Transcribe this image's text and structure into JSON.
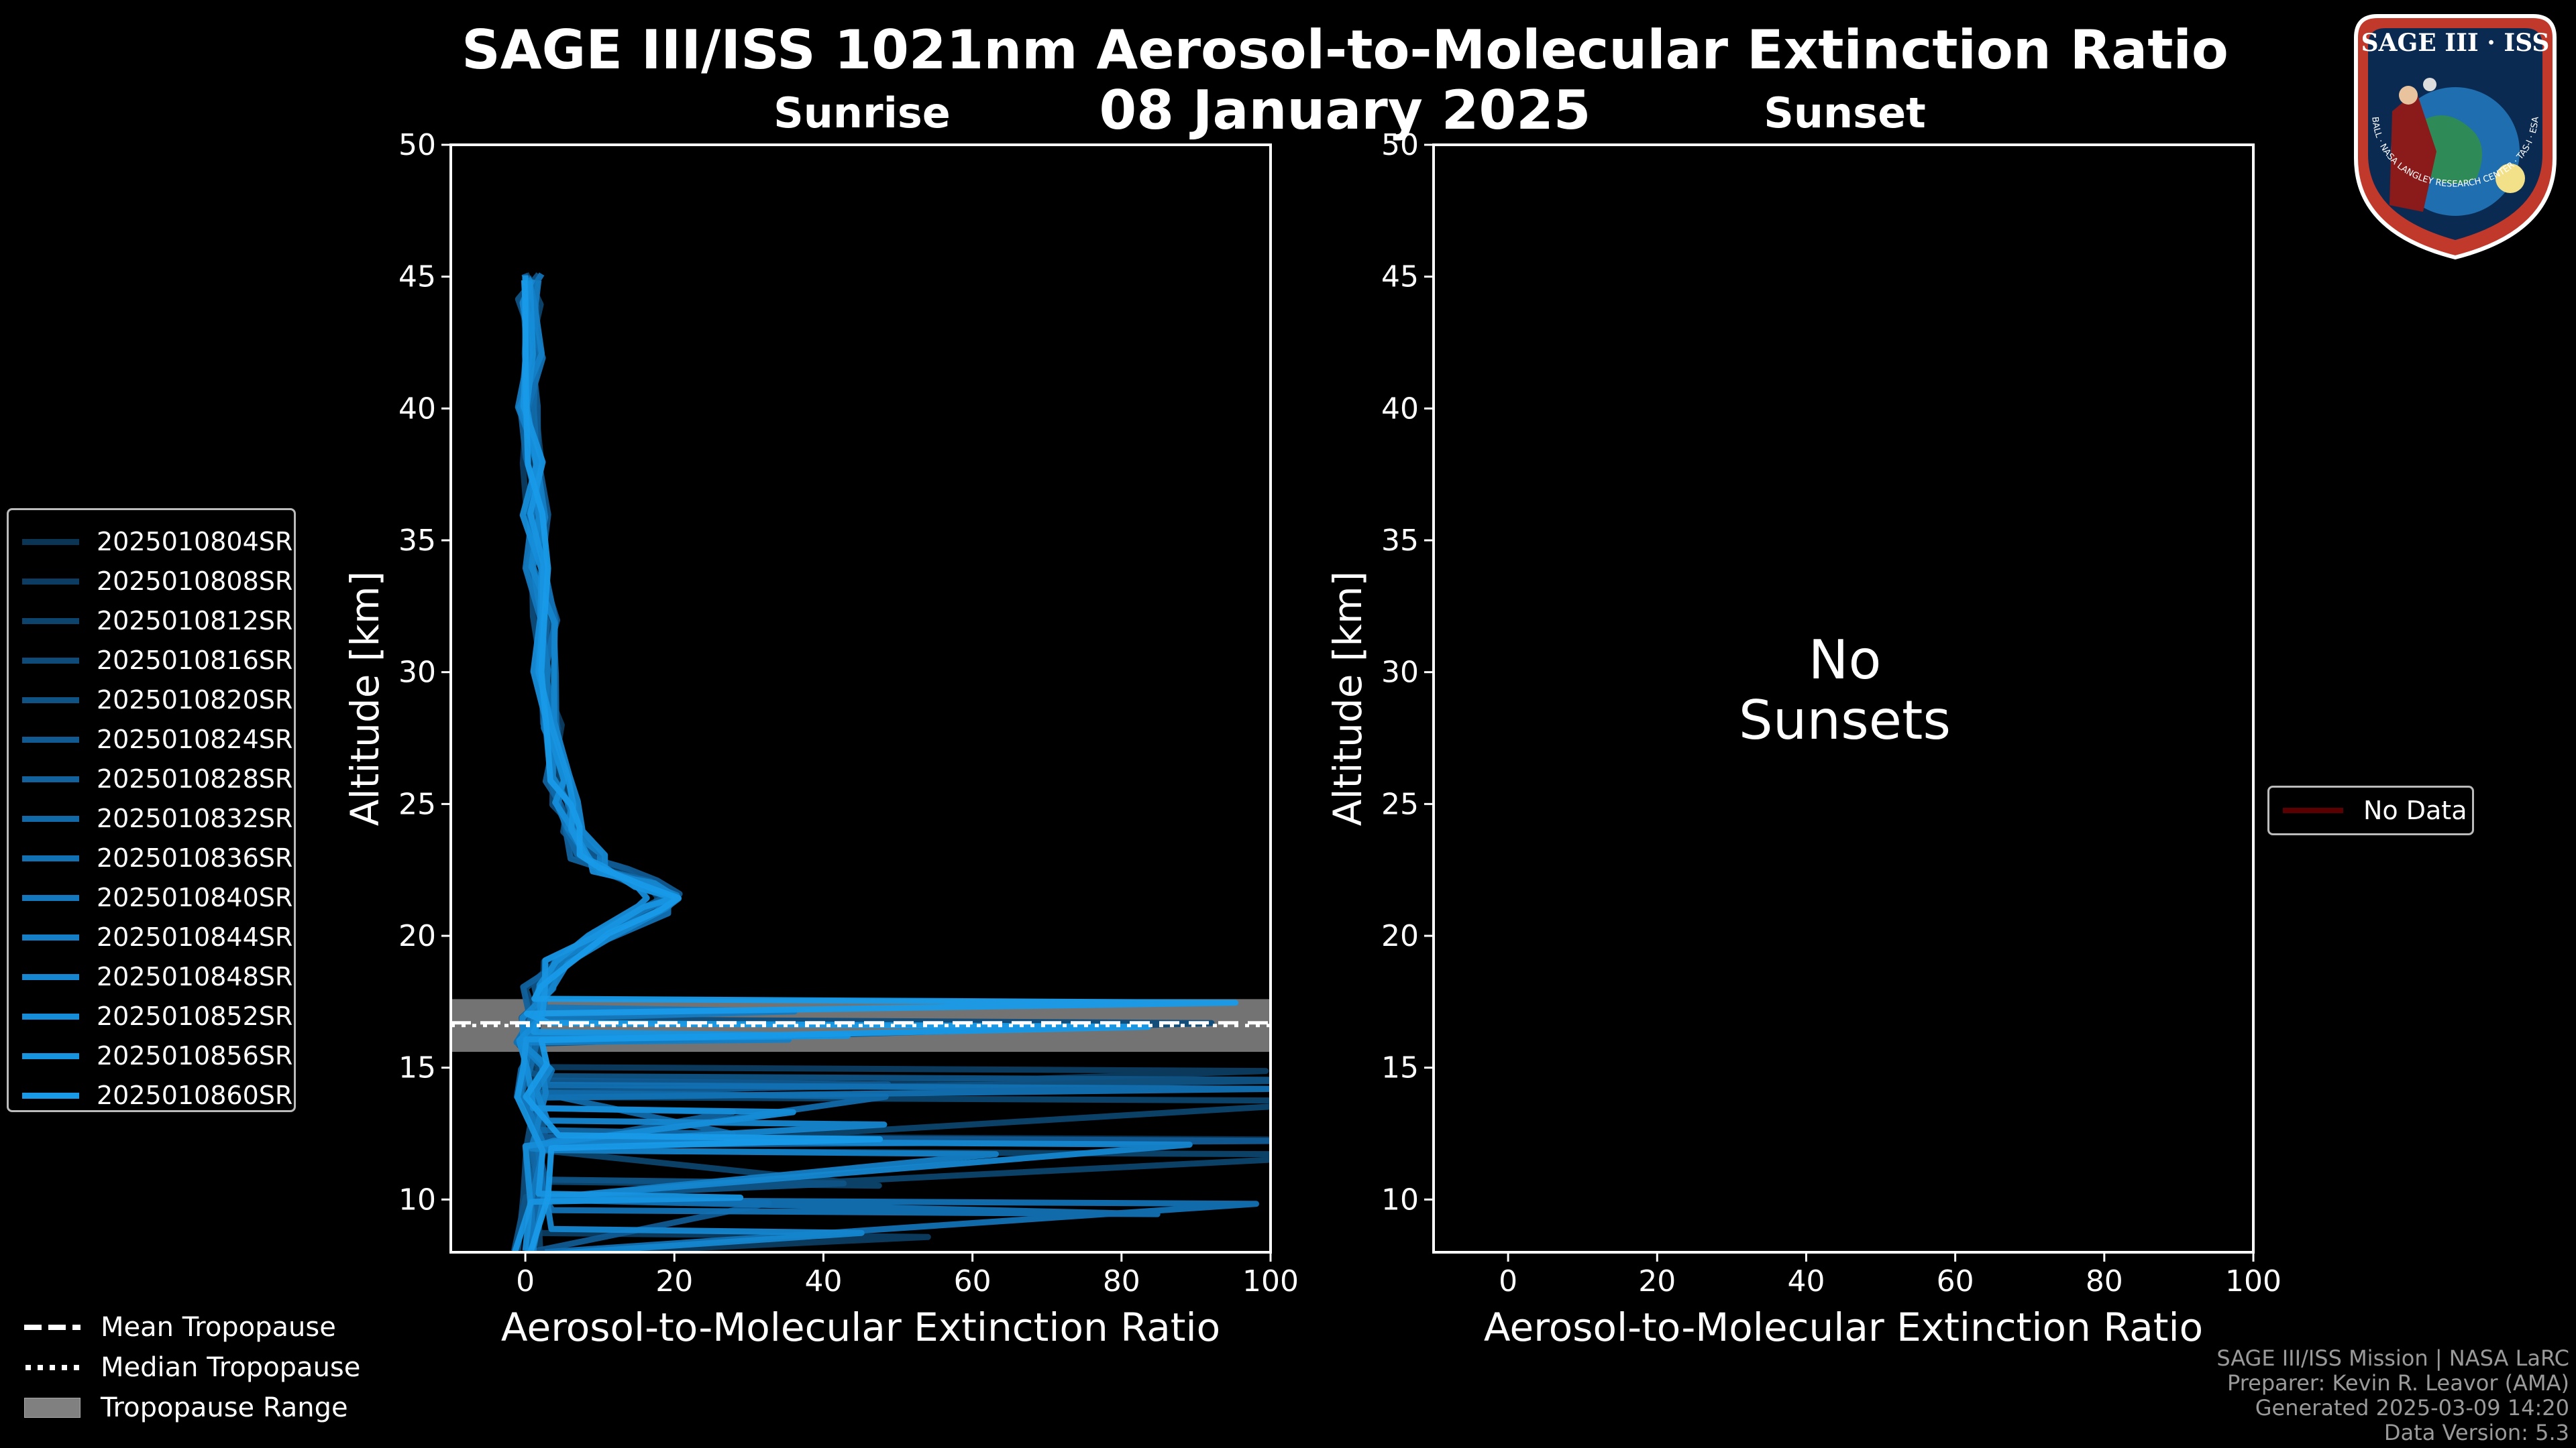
{
  "title_line1": "SAGE III/ISS 1021nm Aerosol-to-Molecular Extinction Ratio",
  "title_line2": "08 January 2025",
  "badge": {
    "text_top": "SAGE III · ISS",
    "text_ring": "BALL · NASA LANGLEY RESEARCH CENTER · TAS-I · ESA"
  },
  "chart_data": [
    {
      "type": "line",
      "subtitle": "Sunrise",
      "xlabel": "Aerosol-to-Molecular Extinction Ratio",
      "ylabel": "Altitude [km]",
      "xlim": [
        -10,
        100
      ],
      "ylim": [
        8,
        50
      ],
      "xticks": [
        "0",
        "20",
        "40",
        "60",
        "80",
        "100"
      ],
      "yticks": [
        "10",
        "15",
        "20",
        "25",
        "30",
        "35",
        "40",
        "45",
        "50"
      ],
      "tropopause": {
        "mean_km": 16.7,
        "median_km": 16.6,
        "range_km": [
          15.6,
          17.6
        ]
      },
      "series": [
        {
          "name": "2025010804SR",
          "color": "#0b3555"
        },
        {
          "name": "2025010808SR",
          "color": "#0c3c61"
        },
        {
          "name": "2025010812SR",
          "color": "#0d446d"
        },
        {
          "name": "2025010816SR",
          "color": "#0e4b79"
        },
        {
          "name": "2025010820SR",
          "color": "#0f5385"
        },
        {
          "name": "2025010824SR",
          "color": "#105a91"
        },
        {
          "name": "2025010828SR",
          "color": "#11629d"
        },
        {
          "name": "2025010832SR",
          "color": "#1169a8"
        },
        {
          "name": "2025010836SR",
          "color": "#1271b3"
        },
        {
          "name": "2025010840SR",
          "color": "#1378bd"
        },
        {
          "name": "2025010844SR",
          "color": "#147fc6"
        },
        {
          "name": "2025010848SR",
          "color": "#1586cf"
        },
        {
          "name": "2025010852SR",
          "color": "#168dd8"
        },
        {
          "name": "2025010856SR",
          "color": "#1794e0"
        },
        {
          "name": "2025010860SR",
          "color": "#189ae8"
        }
      ],
      "profile_core": {
        "alt_km": [
          8,
          10,
          12,
          14,
          15,
          16,
          17,
          18,
          19,
          20,
          21,
          21.5,
          22,
          22.5,
          23,
          24,
          25,
          26,
          28,
          30,
          32,
          34,
          36,
          38,
          40,
          42,
          44,
          45
        ],
        "ratio": [
          0,
          0.5,
          1,
          0.5,
          1,
          0,
          0.5,
          1.5,
          4,
          10,
          17,
          18,
          16,
          11,
          8,
          6,
          5,
          4,
          3,
          2.5,
          2,
          1.5,
          1,
          0.5,
          0,
          0.5,
          0,
          0.5
        ]
      }
    },
    {
      "type": "line",
      "subtitle": "Sunset",
      "xlabel": "Aerosol-to-Molecular Extinction Ratio",
      "ylabel": "Altitude [km]",
      "xlim": [
        -10,
        100
      ],
      "ylim": [
        8,
        50
      ],
      "xticks": [
        "0",
        "20",
        "40",
        "60",
        "80",
        "100"
      ],
      "yticks": [
        "10",
        "15",
        "20",
        "25",
        "30",
        "35",
        "40",
        "45",
        "50"
      ],
      "no_data_text_line1": "No",
      "no_data_text_line2": "Sunsets",
      "series": [
        {
          "name": "No Data",
          "color": "#5a0000"
        }
      ]
    }
  ],
  "tropopause_legend": [
    {
      "label": "Mean Tropopause",
      "style": "dashed"
    },
    {
      "label": "Median Tropopause",
      "style": "dotted"
    },
    {
      "label": "Tropopause Range",
      "style": "band"
    }
  ],
  "footer": {
    "line1": "SAGE III/ISS Mission | NASA LaRC",
    "line2": "Preparer: Kevin R. Leavor (AMA)",
    "line3": "Generated 2025-03-09 14:20",
    "line4": "Data Version: 5.3"
  }
}
